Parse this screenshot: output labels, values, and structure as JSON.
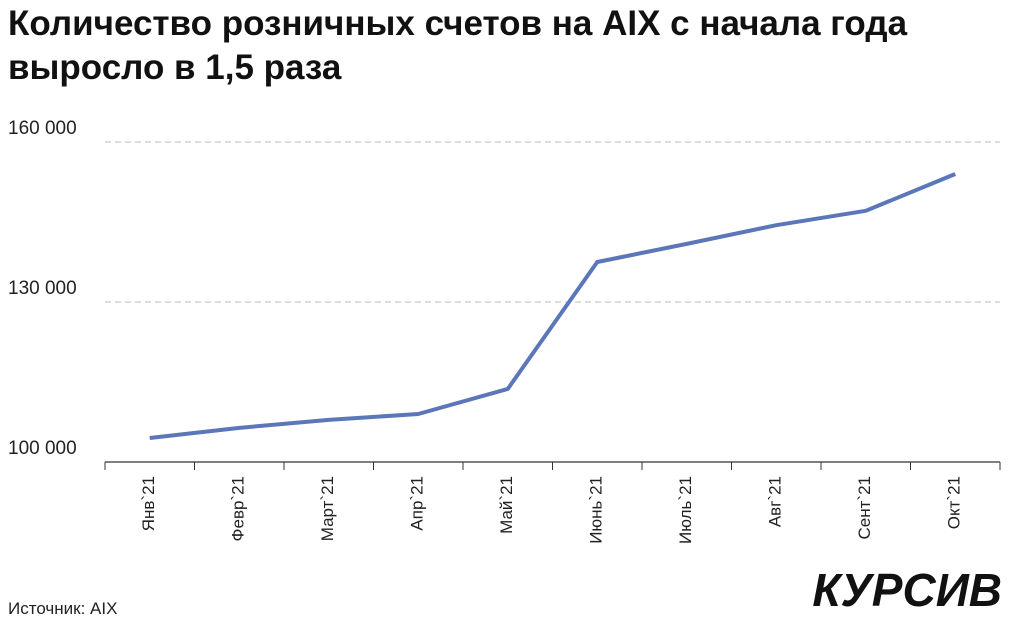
{
  "chart_data": {
    "type": "line",
    "title": "Количество розничных счетов на AIX с начала года выросло в 1,5 раза",
    "categories": [
      "Янв`21",
      "Февр`21",
      "Март`21",
      "Апр`21",
      "Май`21",
      "Июнь`21",
      "Июль`21",
      "Авг`21",
      "Сент`21",
      "Окт`21"
    ],
    "series": [
      {
        "color": "#5b77b9",
        "values": [
          104500,
          106400,
          107900,
          109000,
          113700,
          137500,
          140900,
          144400,
          147100,
          154000
        ]
      }
    ],
    "ylim": [
      100000,
      160000
    ],
    "yticks": [
      {
        "value": 100000,
        "label": "100 000"
      },
      {
        "value": 130000,
        "label": "130 000"
      },
      {
        "value": 160000,
        "label": "160 000"
      }
    ],
    "grid": true,
    "source": "Источник: AIX",
    "brand": "КУРСИВ"
  }
}
